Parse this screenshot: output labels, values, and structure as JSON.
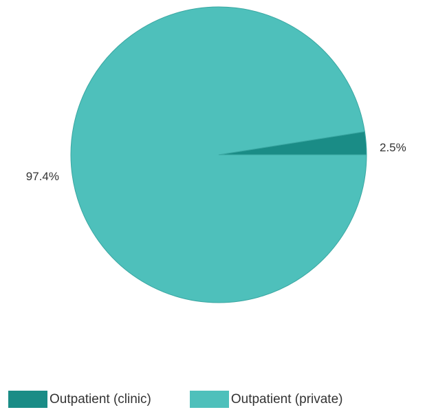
{
  "chart_data": {
    "type": "pie",
    "slices": [
      {
        "label": "Outpatient (clinic)",
        "value": 2.5,
        "value_label": "2.5%",
        "color": "#1a8c86"
      },
      {
        "label": "Outpatient (private)",
        "value": 97.4,
        "value_label": "97.4%",
        "color": "#4ec0bb"
      }
    ],
    "start_angle_deg": 0,
    "direction": "counterclockwise",
    "slice_stroke_color": "#3aa7a2",
    "legend_position": "bottom"
  }
}
